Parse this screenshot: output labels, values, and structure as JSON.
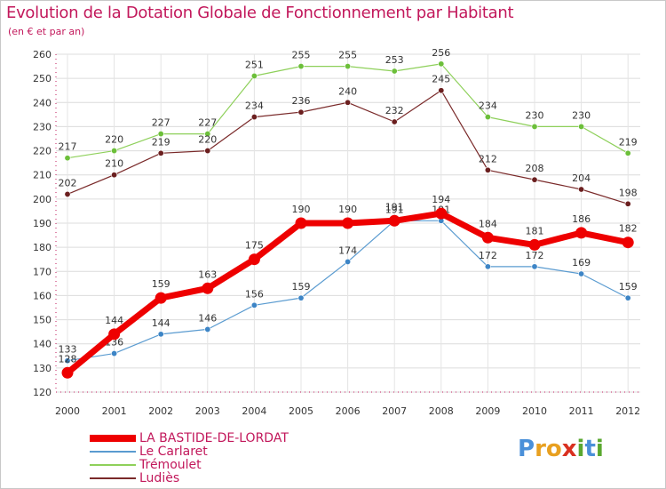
{
  "title": "Evolution de la Dotation Globale de Fonctionnement par Habitant",
  "subtitle": "(en € et par an)",
  "brand": {
    "text": "Proxiti",
    "letters": [
      "P",
      "r",
      "o",
      "x",
      "i",
      "t",
      "i"
    ],
    "colors": [
      "#4a90d9",
      "#e8a020",
      "#e8a020",
      "#d93020",
      "#5aa830",
      "#4a90d9",
      "#5aa830"
    ]
  },
  "chart_data": {
    "type": "line",
    "title": "Evolution de la Dotation Globale de Fonctionnement par Habitant",
    "ylabel": "(en € et par an)",
    "xlabel": "",
    "categories": [
      "2000",
      "2001",
      "2002",
      "2003",
      "2004",
      "2005",
      "2006",
      "2007",
      "2008",
      "2009",
      "2010",
      "2011",
      "2012"
    ],
    "ylim": [
      120,
      260
    ],
    "yticks": [
      120,
      130,
      140,
      150,
      160,
      170,
      180,
      190,
      200,
      210,
      220,
      230,
      240,
      250,
      260
    ],
    "grid": true,
    "legend": "bottom-left",
    "series": [
      {
        "name": "Trémoulet",
        "color": "#8ed05a",
        "marker": "#6cbf3a",
        "width": 1.2,
        "r": 3.2,
        "labelDy": -9,
        "values": [
          217,
          220,
          227,
          227,
          251,
          255,
          255,
          253,
          256,
          234,
          230,
          230,
          219
        ]
      },
      {
        "name": "Ludiès",
        "color": "#7a2a2a",
        "marker": "#6b1f1f",
        "width": 1.2,
        "r": 3.2,
        "labelDy": -9,
        "values": [
          202,
          210,
          219,
          220,
          234,
          236,
          240,
          232,
          245,
          212,
          208,
          204,
          198
        ]
      },
      {
        "name": "Le Carlaret",
        "color": "#5a9bd0",
        "marker": "#3d85c6",
        "width": 1.2,
        "r": 3.2,
        "labelDy": -9,
        "values": [
          133,
          136,
          144,
          146,
          156,
          159,
          174,
          191,
          191,
          172,
          172,
          169,
          159
        ]
      },
      {
        "name": "LA BASTIDE-DE-LORDAT",
        "color": "#ee0000",
        "marker": "#ee0000",
        "width": 7,
        "r": 6.5,
        "labelDy": -12,
        "values": [
          128,
          144,
          159,
          163,
          175,
          190,
          190,
          191,
          194,
          184,
          181,
          186,
          182
        ]
      }
    ],
    "legend_order": [
      "LA BASTIDE-DE-LORDAT",
      "Le Carlaret",
      "Trémoulet",
      "Ludiès"
    ]
  }
}
